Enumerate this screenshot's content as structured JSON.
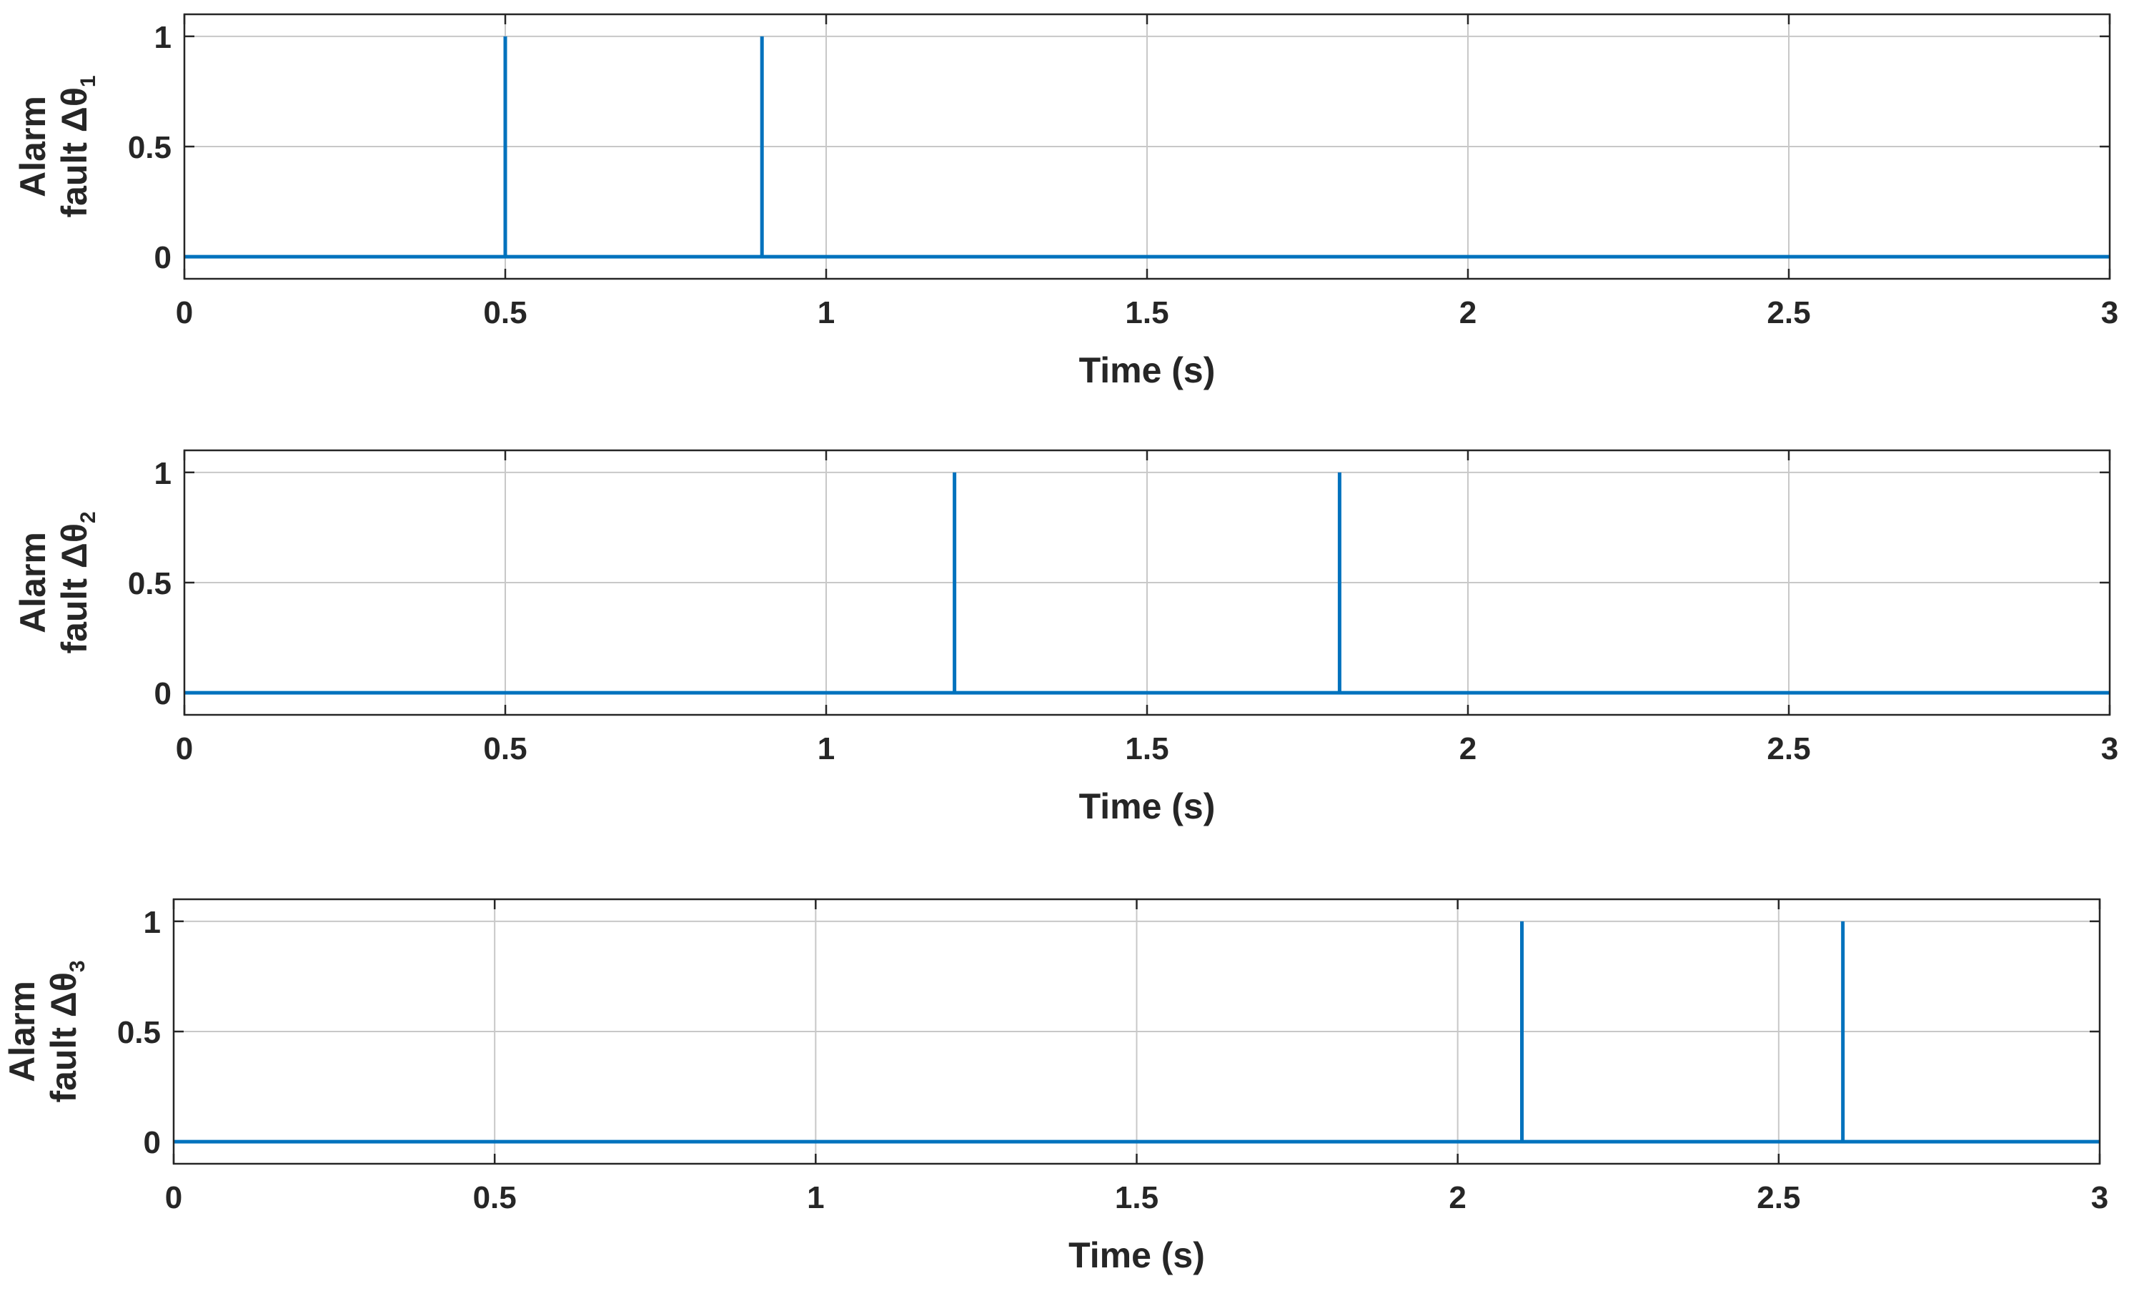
{
  "chart_data": [
    {
      "type": "line",
      "xlabel": "Time (s)",
      "ylabel_lines": [
        "Alarm",
        "fault Δθ"
      ],
      "ylabel_subscript": "1",
      "xlim": [
        0,
        3
      ],
      "ylim": [
        -0.1,
        1.1
      ],
      "xticks": [
        0,
        0.5,
        1,
        1.5,
        2,
        2.5,
        3
      ],
      "xtick_labels": [
        "0",
        "0.5",
        "1",
        "1.5",
        "2",
        "2.5",
        "3"
      ],
      "yticks": [
        0,
        0.5,
        1
      ],
      "ytick_labels": [
        "0",
        "0.5",
        "1"
      ],
      "grid": true,
      "series": [
        {
          "x": [
            0,
            0.5,
            0.5,
            0.5,
            0.5,
            0.9,
            0.9,
            0.9,
            0.9,
            3
          ],
          "y": [
            0,
            0,
            1,
            1,
            0,
            0,
            1,
            1,
            0,
            0
          ]
        }
      ]
    },
    {
      "type": "line",
      "xlabel": "Time (s)",
      "ylabel_lines": [
        "Alarm",
        "fault Δθ"
      ],
      "ylabel_subscript": "2",
      "xlim": [
        0,
        3
      ],
      "ylim": [
        -0.1,
        1.1
      ],
      "xticks": [
        0,
        0.5,
        1,
        1.5,
        2,
        2.5,
        3
      ],
      "xtick_labels": [
        "0",
        "0.5",
        "1",
        "1.5",
        "2",
        "2.5",
        "3"
      ],
      "yticks": [
        0,
        0.5,
        1
      ],
      "ytick_labels": [
        "0",
        "0.5",
        "1"
      ],
      "grid": true,
      "series": [
        {
          "x": [
            0,
            1.2,
            1.2,
            1.2,
            1.2,
            1.8,
            1.8,
            1.8,
            1.8,
            3
          ],
          "y": [
            0,
            0,
            1,
            1,
            0,
            0,
            1,
            1,
            0,
            0
          ]
        }
      ]
    },
    {
      "type": "line",
      "xlabel": "Time (s)",
      "ylabel_lines": [
        "Alarm",
        "fault Δθ"
      ],
      "ylabel_subscript": "3",
      "xlim": [
        0,
        3
      ],
      "ylim": [
        -0.1,
        1.1
      ],
      "xticks": [
        0,
        0.5,
        1,
        1.5,
        2,
        2.5,
        3
      ],
      "xtick_labels": [
        "0",
        "0.5",
        "1",
        "1.5",
        "2",
        "2.5",
        "3"
      ],
      "yticks": [
        0,
        0.5,
        1
      ],
      "ytick_labels": [
        "0",
        "0.5",
        "1"
      ],
      "grid": true,
      "series": [
        {
          "x": [
            0,
            2.1,
            2.1,
            2.1,
            2.1,
            2.6,
            2.6,
            2.6,
            2.6,
            3
          ],
          "y": [
            0,
            0,
            1,
            1,
            0,
            0,
            1,
            1,
            0,
            0
          ]
        }
      ]
    }
  ],
  "colors": {
    "line": "#0072BD",
    "grid": "#c8c8c8",
    "axis": "#262626",
    "text": "#262626"
  }
}
